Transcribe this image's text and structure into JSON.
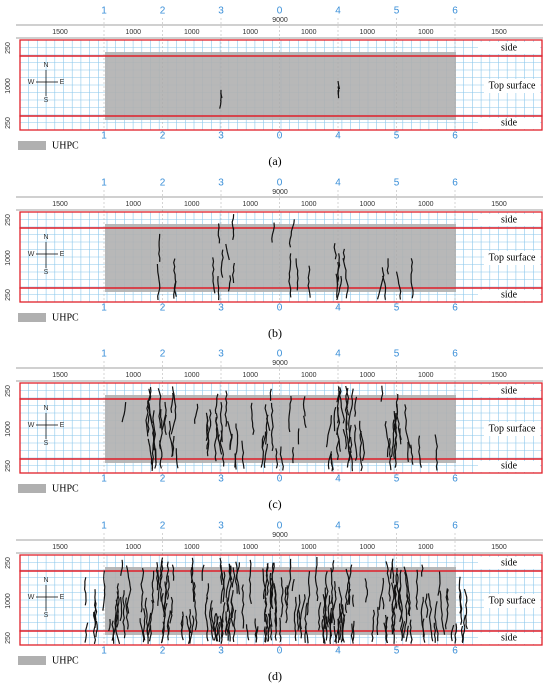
{
  "drawing": {
    "axes": [
      "1",
      "2",
      "3",
      "0",
      "4",
      "5",
      "6"
    ],
    "total_length": "9000",
    "spans": [
      "1500",
      "1000",
      "1000",
      "1000",
      "1000",
      "1000",
      "1000",
      "1500"
    ],
    "widths": [
      "250",
      "1000",
      "250"
    ],
    "compass": {
      "north": "N",
      "south": "S",
      "west": "W",
      "east": "E"
    },
    "regions": {
      "side_top": "side",
      "top_surface": "Top surface",
      "side_bottom": "side"
    },
    "legend": "UHPC"
  },
  "panels": [
    {
      "caption": "(a)"
    },
    {
      "caption": "(b)"
    },
    {
      "caption": "(c)"
    },
    {
      "caption": "(d)"
    }
  ]
}
